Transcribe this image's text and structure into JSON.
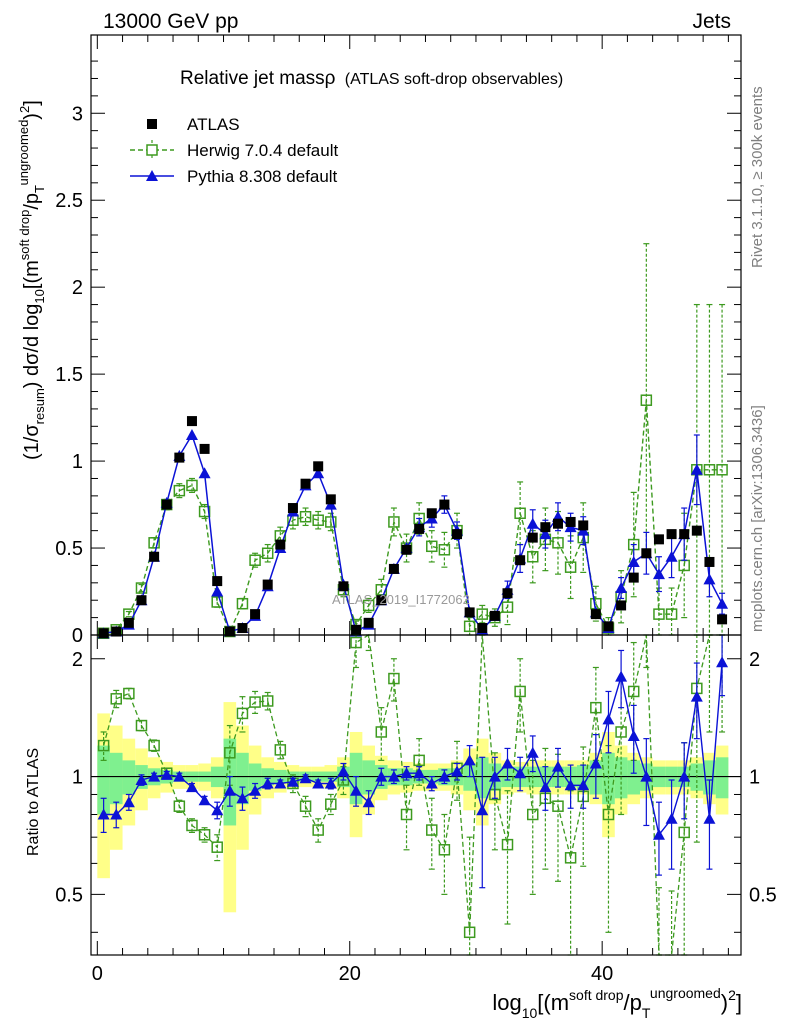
{
  "header": {
    "energy": "13000 GeV pp",
    "process": "Jets"
  },
  "side": {
    "rivet": "Rivet 3.1.10, ≥ 300k events",
    "site": "mcplots.cern.ch [arXiv:1306.3436]"
  },
  "chart_data": {
    "type": "line",
    "title": "Relative jet massρ",
    "subtitle": "(ATLAS soft-drop observables)",
    "watermark": "ATLAS_2019_I1772062",
    "xlabel": "log10[(m^soft drop/p_T^ungroomed)^2]",
    "xlabel_parts": {
      "prefix": "log",
      "sub1": "10",
      "mid": "[(m",
      "sup1": "soft drop",
      "slash": "/p",
      "sub2": "T",
      "sup2": "ungroomed",
      "close": ")",
      "sup3": "2",
      "end": "]"
    },
    "ylabel": "(1/σresum) dσ/d log10[(m^soft drop/p_T^ungroomed)^2]",
    "ylabel_parts": {
      "a": "(1/σ",
      "sub_a": "resum",
      "b": ") dσ/d log",
      "sub_b": "10",
      "c": "[(m",
      "sup_c": "soft drop",
      "d": "/p",
      "sub_d": "T",
      "sup_d": "ungroomed",
      "e": ")",
      "sup_e": "2",
      "f": "]"
    },
    "ratio_ylabel": "Ratio to ATLAS",
    "xlim": [
      -0.5,
      51
    ],
    "ylim": [
      0,
      3.45
    ],
    "ratio_ylim": [
      0.35,
      2.3
    ],
    "xticks": [
      0,
      20,
      40
    ],
    "yticks": [
      0,
      0.5,
      1,
      1.5,
      2,
      2.5,
      3
    ],
    "yticklabels": [
      "0",
      "0.5",
      "1",
      "1.5",
      "2",
      "2.5",
      "3"
    ],
    "ratio_yticks": [
      0.5,
      1,
      2
    ],
    "ratio_yticklabels": [
      "0.5",
      "1",
      "2"
    ],
    "legend": [
      {
        "name": "ATLAS",
        "marker": "filled-square",
        "color": "#000000"
      },
      {
        "name": "Herwig 7.0.4 default",
        "marker": "open-square-dashed",
        "color": "#3d9a1f"
      },
      {
        "name": "Pythia 8.308 default",
        "marker": "filled-triangle-solid",
        "color": "#0b12d6"
      }
    ],
    "x": [
      0.5,
      1.5,
      2.5,
      3.5,
      4.5,
      5.5,
      6.5,
      7.5,
      8.5,
      9.5,
      10.5,
      11.5,
      12.5,
      13.5,
      14.5,
      15.5,
      16.5,
      17.5,
      18.5,
      19.5,
      20.5,
      21.5,
      22.5,
      23.5,
      24.5,
      25.5,
      26.5,
      27.5,
      28.5,
      29.5,
      30.5,
      31.5,
      32.5,
      33.5,
      34.5,
      35.5,
      36.5,
      37.5,
      38.5,
      39.5,
      40.5,
      41.5,
      42.5,
      43.5,
      44.5,
      45.5,
      46.5,
      47.5,
      48.5,
      49.5
    ],
    "series": [
      {
        "name": "ATLAS",
        "values": [
          0.01,
          0.02,
          0.07,
          0.2,
          0.45,
          0.75,
          1.02,
          1.23,
          1.07,
          0.31,
          0.02,
          0.04,
          0.12,
          0.29,
          0.52,
          0.73,
          0.87,
          0.97,
          0.78,
          0.28,
          0.03,
          0.07,
          0.2,
          0.38,
          0.49,
          0.61,
          0.7,
          0.75,
          0.58,
          0.13,
          0.04,
          0.11,
          0.24,
          0.43,
          0.56,
          0.62,
          0.64,
          0.65,
          0.63,
          0.12,
          0.05,
          0.17,
          0.33,
          0.47,
          0.55,
          0.58,
          0.58,
          0.6,
          0.42,
          0.09
        ]
      },
      {
        "name": "Herwig 7.0.4 default",
        "values": [
          0.01,
          0.03,
          0.12,
          0.27,
          0.53,
          0.75,
          0.83,
          0.86,
          0.71,
          0.19,
          0.02,
          0.18,
          0.43,
          0.47,
          0.57,
          0.66,
          0.68,
          0.66,
          0.65,
          0.26,
          0.06,
          0.17,
          0.26,
          0.65,
          0.5,
          0.67,
          0.51,
          0.49,
          0.6,
          0.05,
          0.12,
          0.1,
          0.16,
          0.7,
          0.45,
          0.55,
          0.53,
          0.39,
          0.56,
          0.18,
          0.04,
          0.22,
          0.52,
          1.35,
          0.12,
          0.12,
          0.4,
          0.95,
          0.95,
          0.95
        ],
        "yerr": [
          0.005,
          0.008,
          0.015,
          0.02,
          0.03,
          0.03,
          0.04,
          0.04,
          0.04,
          0.03,
          0.01,
          0.03,
          0.04,
          0.05,
          0.05,
          0.05,
          0.05,
          0.05,
          0.05,
          0.04,
          0.02,
          0.04,
          0.06,
          0.08,
          0.08,
          0.09,
          0.09,
          0.1,
          0.1,
          0.05,
          0.05,
          0.05,
          0.1,
          0.18,
          0.15,
          0.18,
          0.18,
          0.18,
          0.2,
          0.1,
          0.06,
          0.15,
          0.3,
          0.9,
          0.15,
          0.15,
          0.3,
          0.95,
          0.95,
          0.95
        ]
      },
      {
        "name": "Pythia 8.308 default",
        "values": [
          0.01,
          0.02,
          0.06,
          0.2,
          0.45,
          0.76,
          1.03,
          1.15,
          0.93,
          0.25,
          0.02,
          0.04,
          0.11,
          0.28,
          0.5,
          0.71,
          0.86,
          0.93,
          0.75,
          0.29,
          0.02,
          0.06,
          0.2,
          0.38,
          0.5,
          0.62,
          0.67,
          0.75,
          0.6,
          0.13,
          0.03,
          0.11,
          0.26,
          0.44,
          0.64,
          0.58,
          0.68,
          0.62,
          0.6,
          0.13,
          0.04,
          0.27,
          0.42,
          0.47,
          0.35,
          0.45,
          0.58,
          0.95,
          0.32,
          0.18
        ],
        "yerr": [
          0.003,
          0.005,
          0.01,
          0.015,
          0.02,
          0.02,
          0.025,
          0.025,
          0.025,
          0.02,
          0.005,
          0.01,
          0.02,
          0.025,
          0.025,
          0.025,
          0.03,
          0.03,
          0.03,
          0.02,
          0.01,
          0.02,
          0.03,
          0.04,
          0.04,
          0.05,
          0.05,
          0.05,
          0.05,
          0.03,
          0.02,
          0.03,
          0.05,
          0.08,
          0.08,
          0.08,
          0.08,
          0.08,
          0.08,
          0.04,
          0.03,
          0.06,
          0.1,
          0.12,
          0.1,
          0.12,
          0.15,
          0.2,
          0.1,
          0.06
        ]
      }
    ],
    "ratio": {
      "band_yellow_halfwidth": [
        0.45,
        0.35,
        0.25,
        0.18,
        0.12,
        0.09,
        0.07,
        0.07,
        0.08,
        0.12,
        0.55,
        0.35,
        0.2,
        0.12,
        0.09,
        0.07,
        0.06,
        0.06,
        0.07,
        0.12,
        0.3,
        0.2,
        0.13,
        0.1,
        0.09,
        0.08,
        0.08,
        0.08,
        0.1,
        0.18,
        0.25,
        0.15,
        0.1,
        0.09,
        0.1,
        0.1,
        0.1,
        0.1,
        0.1,
        0.15,
        0.3,
        0.2,
        0.15,
        0.12,
        0.1,
        0.1,
        0.1,
        0.12,
        0.15,
        0.2
      ],
      "band_green_halfwidth": [
        0.2,
        0.15,
        0.1,
        0.07,
        0.05,
        0.04,
        0.03,
        0.03,
        0.03,
        0.06,
        0.25,
        0.15,
        0.08,
        0.05,
        0.04,
        0.03,
        0.03,
        0.03,
        0.03,
        0.06,
        0.15,
        0.1,
        0.07,
        0.05,
        0.05,
        0.04,
        0.04,
        0.05,
        0.05,
        0.08,
        0.12,
        0.08,
        0.06,
        0.06,
        0.06,
        0.06,
        0.06,
        0.06,
        0.07,
        0.1,
        0.15,
        0.12,
        0.1,
        0.08,
        0.06,
        0.06,
        0.06,
        0.08,
        0.1,
        0.12
      ],
      "herwig": [
        1.2,
        1.58,
        1.63,
        1.35,
        1.2,
        1.02,
        0.84,
        0.75,
        0.71,
        0.66,
        1.15,
        1.45,
        1.55,
        1.56,
        1.17,
        0.96,
        0.84,
        0.73,
        0.85,
        0.98,
        2.2,
        2.4,
        1.3,
        1.78,
        0.8,
        1.1,
        0.73,
        0.65,
        1.05,
        0.4,
        2.8,
        0.9,
        0.67,
        1.65,
        0.8,
        0.88,
        0.84,
        0.62,
        0.89,
        1.5,
        0.8,
        1.3,
        1.65,
        2.8,
        0.22,
        0.21,
        0.72,
        1.68,
        2.3,
        2.3
      ],
      "pythia": [
        0.8,
        0.8,
        0.86,
        0.98,
        1.0,
        1.01,
        1.0,
        0.94,
        0.87,
        0.82,
        0.92,
        0.88,
        0.92,
        0.96,
        0.96,
        0.97,
        0.99,
        0.96,
        0.96,
        1.03,
        0.92,
        0.86,
        1.0,
        1.0,
        1.02,
        1.02,
        0.96,
        1.0,
        1.03,
        1.1,
        0.82,
        1.0,
        1.08,
        1.02,
        1.15,
        0.94,
        1.06,
        0.95,
        0.95,
        1.08,
        1.4,
        1.8,
        1.27,
        1.0,
        0.71,
        0.78,
        1.0,
        1.6,
        0.78,
        1.96
      ],
      "pythia_err": [
        0.08,
        0.06,
        0.04,
        0.03,
        0.02,
        0.02,
        0.02,
        0.02,
        0.02,
        0.04,
        0.08,
        0.06,
        0.04,
        0.03,
        0.02,
        0.02,
        0.02,
        0.02,
        0.03,
        0.05,
        0.08,
        0.06,
        0.05,
        0.04,
        0.04,
        0.04,
        0.04,
        0.04,
        0.05,
        0.1,
        0.3,
        0.12,
        0.1,
        0.1,
        0.12,
        0.12,
        0.12,
        0.12,
        0.12,
        0.2,
        0.25,
        0.3,
        0.25,
        0.25,
        0.15,
        0.2,
        0.22,
        0.35,
        0.2,
        0.35
      ],
      "herwig_err": [
        0.1,
        0.08,
        0.05,
        0.04,
        0.04,
        0.03,
        0.03,
        0.03,
        0.03,
        0.05,
        0.2,
        0.15,
        0.1,
        0.08,
        0.06,
        0.05,
        0.05,
        0.05,
        0.05,
        0.08,
        0.3,
        0.3,
        0.2,
        0.22,
        0.15,
        0.15,
        0.15,
        0.15,
        0.18,
        0.3,
        0.5,
        0.25,
        0.25,
        0.35,
        0.3,
        0.3,
        0.3,
        0.3,
        0.3,
        0.4,
        0.4,
        0.5,
        0.55,
        0.9,
        0.3,
        0.3,
        0.5,
        1.0,
        1.0,
        1.0
      ]
    }
  }
}
